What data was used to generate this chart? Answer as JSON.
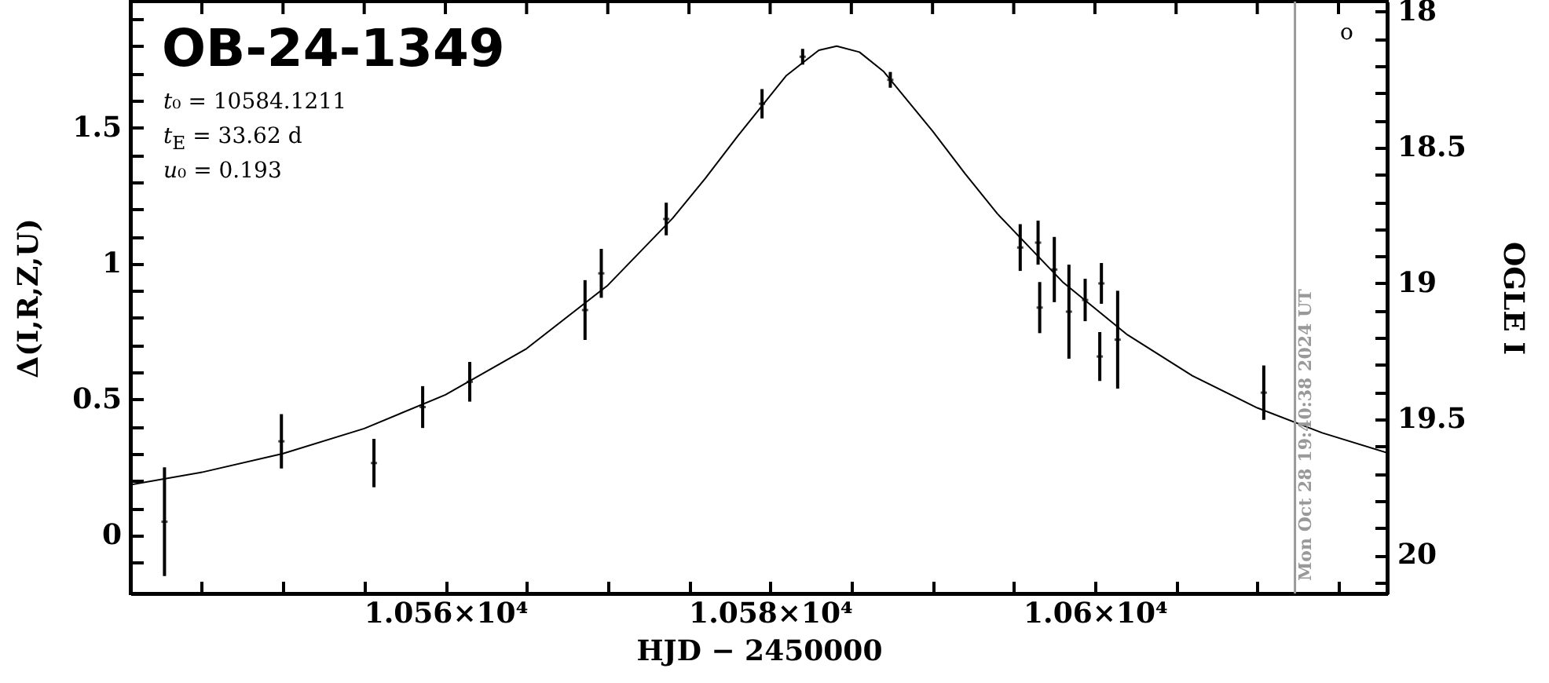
{
  "chart_data": {
    "type": "scatter",
    "title": "OB-24-1349",
    "xlabel": "HJD − 2450000",
    "ylabel": "Δ(I,R,Z,U)",
    "y2label": "OGLE I",
    "annotations": [
      "t₀ = 10584.1211",
      "t$_{E}$ = 33.62 d",
      "u₀ = 0.193",
      "o",
      "Mon Oct 28 19:40:38 2024 UT"
    ],
    "series": [
      {
        "color": "#000000",
        "x": [
          10542.7,
          10549.9,
          10555.6,
          10558.6,
          10561.5,
          10568.6,
          10569.6,
          10573.6,
          10579.5,
          10582.0,
          10587.4,
          10595.4,
          10596.5,
          10596.6,
          10597.5,
          10598.4,
          10599.4,
          10600.4,
          10600.3,
          10601.4,
          10610.4
        ],
        "values": [
          0.05,
          0.346,
          0.266,
          0.472,
          0.565,
          0.829,
          0.964,
          1.164,
          1.588,
          1.761,
          1.676,
          1.059,
          1.077,
          0.838,
          0.978,
          0.823,
          0.866,
          0.927,
          0.658,
          0.72,
          0.525
        ],
        "errors": [
          0.2,
          0.1,
          0.089,
          0.077,
          0.073,
          0.11,
          0.09,
          0.06,
          0.054,
          0.029,
          0.029,
          0.086,
          0.081,
          0.094,
          0.12,
          0.173,
          0.078,
          0.075,
          0.09,
          0.18,
          0.1
        ]
      },
      {
        "type": "line",
        "color": "#000000",
        "x": [
          10540.6,
          10545,
          10550,
          10555,
          10560,
          10565,
          10570,
          10574,
          10576,
          10578,
          10581,
          10583,
          10584.1,
          10585.5,
          10587,
          10590,
          10592,
          10594,
          10598,
          10602,
          10606,
          10610,
          10614,
          10618
        ],
        "values": [
          0.186,
          0.232,
          0.301,
          0.393,
          0.517,
          0.687,
          0.92,
          1.167,
          1.313,
          1.469,
          1.692,
          1.785,
          1.8,
          1.778,
          1.706,
          1.488,
          1.331,
          1.183,
          0.933,
          0.738,
          0.587,
          0.469,
          0.377,
          0.304
        ]
      }
    ],
    "ref_lines": [
      {
        "axis": "x",
        "value": 10612.32,
        "color": "#999999"
      }
    ],
    "xlim": [
      10540.6,
      10618
    ],
    "xticks": [
      {
        "value": 10545,
        "label": null
      },
      {
        "value": 10550,
        "label": null
      },
      {
        "value": 10555,
        "label": null
      },
      {
        "value": 10560,
        "label": "1.056×10⁴"
      },
      {
        "value": 10565,
        "label": null
      },
      {
        "value": 10570,
        "label": null
      },
      {
        "value": 10575,
        "label": null
      },
      {
        "value": 10580,
        "label": "1.058×10⁴"
      },
      {
        "value": 10585,
        "label": null
      },
      {
        "value": 10590,
        "label": null
      },
      {
        "value": 10595,
        "label": null
      },
      {
        "value": 10600,
        "label": "1.06×10⁴"
      },
      {
        "value": 10605,
        "label": null
      },
      {
        "value": 10610,
        "label": null
      },
      {
        "value": 10615,
        "label": null
      }
    ],
    "ylim": [
      -0.214,
      1.964
    ],
    "yticks": [
      {
        "value": -0.1,
        "label": null
      },
      0,
      {
        "value": 0.1,
        "label": null
      },
      {
        "value": 0.2,
        "label": null
      },
      {
        "value": 0.3,
        "label": null
      },
      {
        "value": 0.4,
        "label": null
      },
      0.5,
      {
        "value": 0.6,
        "label": null
      },
      {
        "value": 0.7,
        "label": null
      },
      {
        "value": 0.8,
        "label": null
      },
      {
        "value": 0.9,
        "label": null
      },
      1,
      {
        "value": 1.1,
        "label": null
      },
      {
        "value": 1.2,
        "label": null
      },
      {
        "value": 1.3,
        "label": null
      },
      {
        "value": 1.4,
        "label": null
      },
      1.5,
      {
        "value": 1.6,
        "label": null
      },
      {
        "value": 1.7,
        "label": null
      },
      {
        "value": 1.8,
        "label": null
      },
      {
        "value": 1.9,
        "label": null
      }
    ],
    "y2lim": [
      20.141,
      17.963
    ],
    "y2ticks": [
      18,
      {
        "value": 18.1,
        "label": null
      },
      {
        "value": 18.2,
        "label": null
      },
      {
        "value": 18.3,
        "label": null
      },
      {
        "value": 18.4,
        "label": null
      },
      18.5,
      {
        "value": 18.6,
        "label": null
      },
      {
        "value": 18.7,
        "label": null
      },
      {
        "value": 18.8,
        "label": null
      },
      {
        "value": 18.9,
        "label": null
      },
      19,
      {
        "value": 19.1,
        "label": null
      },
      {
        "value": 19.2,
        "label": null
      },
      {
        "value": 19.3,
        "label": null
      },
      {
        "value": 19.4,
        "label": null
      },
      19.5,
      {
        "value": 19.6,
        "label": null
      },
      {
        "value": 19.7,
        "label": null
      },
      {
        "value": 19.8,
        "label": null
      },
      {
        "value": 19.9,
        "label": null
      },
      20,
      {
        "value": 20.1,
        "label": null
      }
    ]
  }
}
